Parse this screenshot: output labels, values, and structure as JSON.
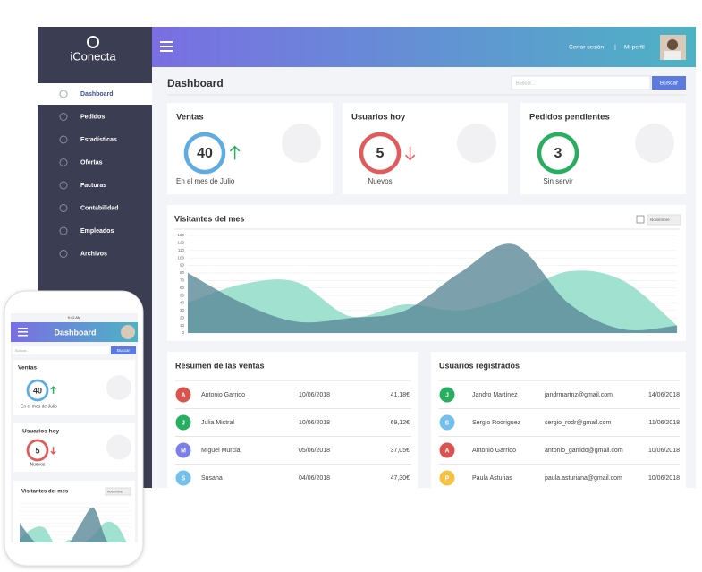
{
  "brand": {
    "name": "iConecta"
  },
  "nav": {
    "items": [
      "Dashboard",
      "Pedidos",
      "Estadísticas",
      "Ofertas",
      "Facturas",
      "Contabilidad",
      "Empleados",
      "Archivos"
    ],
    "active": 0
  },
  "header": {
    "logout": "Cerrar sesión",
    "separator": "|",
    "profile": "Mi perfil"
  },
  "toolbar": {
    "title": "Dashboard",
    "search_placeholder": "Buscar...",
    "search_button": "Buscar"
  },
  "cards": [
    {
      "title": "Ventas",
      "value": 40,
      "caption": "En el mes de Julio",
      "color": "#5dade2",
      "trend": "up"
    },
    {
      "title": "Usuarios hoy",
      "value": 5,
      "caption": "Nuevos",
      "color": "#e05c5c",
      "trend": "down"
    },
    {
      "title": "Pedidos pendientes",
      "value": 3,
      "caption": "Sin servir",
      "color": "#27ae60",
      "trend": "none"
    }
  ],
  "chart_data": {
    "type": "area",
    "title": "Visitantes del mes",
    "period": "Noviembre",
    "categories": [
      null,
      null,
      null,
      null,
      null,
      null,
      null,
      null,
      null,
      null
    ],
    "series": [
      {
        "color": "#8fdcc8",
        "values": [
          40,
          65,
          68,
          22,
          38,
          30,
          50,
          82,
          70,
          10
        ]
      },
      {
        "color": "#5b8a98",
        "values": [
          80,
          40,
          15,
          20,
          30,
          80,
          118,
          40,
          5,
          10
        ]
      }
    ],
    "ylim": [
      0,
      130
    ],
    "yticks": [
      0,
      10,
      20,
      30,
      40,
      50,
      60,
      70,
      80,
      90,
      100,
      110,
      120,
      130
    ],
    "grid": true
  },
  "sales": {
    "title": "Resumen de las ventas",
    "rows": [
      {
        "initial": "A",
        "color": "#d9534f",
        "name": "Antonio Garrido",
        "date": "10/06/2018",
        "amount": "41,18€"
      },
      {
        "initial": "J",
        "color": "#27ae60",
        "name": "Julia Mistral",
        "date": "10/06/2018",
        "amount": "69,12€"
      },
      {
        "initial": "M",
        "color": "#7b7fe8",
        "name": "Miguel Murcia",
        "date": "05/06/2018",
        "amount": "37,05€"
      },
      {
        "initial": "S",
        "color": "#74c0ec",
        "name": "Susana",
        "date": "04/06/2018",
        "amount": "47,30€"
      }
    ]
  },
  "users": {
    "title": "Usuarios registrados",
    "rows": [
      {
        "initial": "J",
        "color": "#27ae60",
        "name": "Jandro Martínez",
        "email": "jandrmartnz@gmail.com",
        "date": "14/06/2018"
      },
      {
        "initial": "S",
        "color": "#74c0ec",
        "name": "Sergio Rodriguez",
        "email": "sergio_rodr@gmail.com",
        "date": "11/06/2018"
      },
      {
        "initial": "A",
        "color": "#d9534f",
        "name": "Antonio Garrido",
        "email": "antonio_garrido@gmail.com",
        "date": "10/06/2018"
      },
      {
        "initial": "P",
        "color": "#f5c242",
        "name": "Paula Asturias",
        "email": "paula.asturiana@gmail.com",
        "date": "10/06/2018"
      }
    ]
  },
  "phone": {
    "time": "9:42 AM",
    "title": "Dashboard",
    "search_placeholder": "Buscar...",
    "search_button": "Buscar",
    "cards": [
      {
        "title": "Ventas",
        "value": 40,
        "caption": "En el mes de Julio",
        "color": "#5dade2",
        "trend": "up"
      },
      {
        "title": "Usuarios hoy",
        "value": 5,
        "caption": "Nuevos",
        "color": "#e05c5c",
        "trend": "down"
      }
    ],
    "chart_title": "Visitantes del mes",
    "period": "Noviembre"
  }
}
